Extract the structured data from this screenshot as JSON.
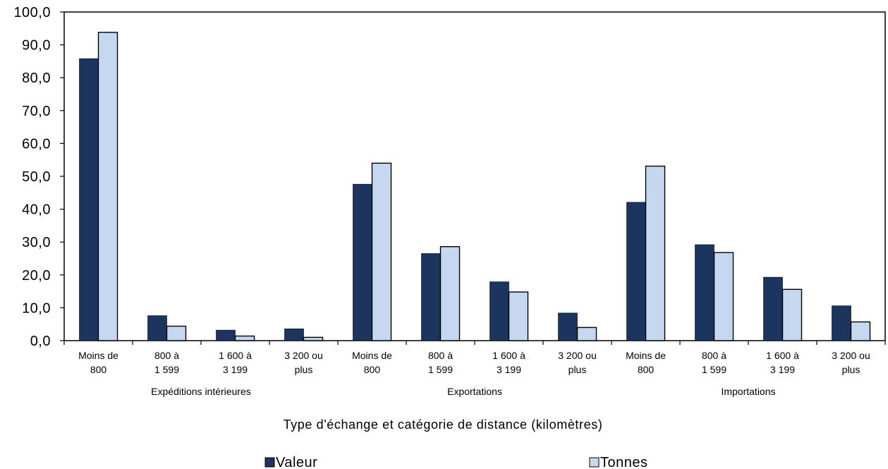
{
  "chart_data": {
    "type": "bar",
    "xlabel": "Type d'échange et catégorie de distance (kilomètres)",
    "ylabel": "",
    "ylim": [
      0,
      100
    ],
    "yticks": [
      "0,0",
      "10,0",
      "20,0",
      "30,0",
      "40,0",
      "50,0",
      "60,0",
      "70,0",
      "80,0",
      "90,0",
      "100,0"
    ],
    "grid": false,
    "legend_position": "bottom",
    "groups": [
      {
        "label": "Expéditions intérieures",
        "categories": [
          0,
          1,
          2,
          3
        ]
      },
      {
        "label": "Exportations",
        "categories": [
          4,
          5,
          6,
          7
        ]
      },
      {
        "label": "Importations",
        "categories": [
          8,
          9,
          10,
          11
        ]
      }
    ],
    "categories": [
      [
        "Moins de",
        "800"
      ],
      [
        "800 à",
        "1 599"
      ],
      [
        "1 600 à",
        "3 199"
      ],
      [
        "3 200 ou",
        "plus"
      ],
      [
        "Moins de",
        "800"
      ],
      [
        "800 à",
        "1 599"
      ],
      [
        "1 600 à",
        "3 199"
      ],
      [
        "3 200 ou",
        "plus"
      ],
      [
        "Moins de",
        "800"
      ],
      [
        "800 à",
        "1 599"
      ],
      [
        "1 600 à",
        "3 199"
      ],
      [
        "3 200 ou",
        "plus"
      ]
    ],
    "series": [
      {
        "name": "Valeur",
        "color": "#1b355e",
        "values": [
          85.8,
          7.6,
          3.2,
          3.6,
          47.6,
          26.5,
          17.9,
          8.4,
          42.1,
          29.2,
          19.3,
          10.6
        ]
      },
      {
        "name": "Tonnes",
        "color": "#c5d8f0",
        "values": [
          93.8,
          4.4,
          1.4,
          1.0,
          54.0,
          28.6,
          14.8,
          4.0,
          53.1,
          26.8,
          15.6,
          5.7
        ]
      }
    ]
  }
}
